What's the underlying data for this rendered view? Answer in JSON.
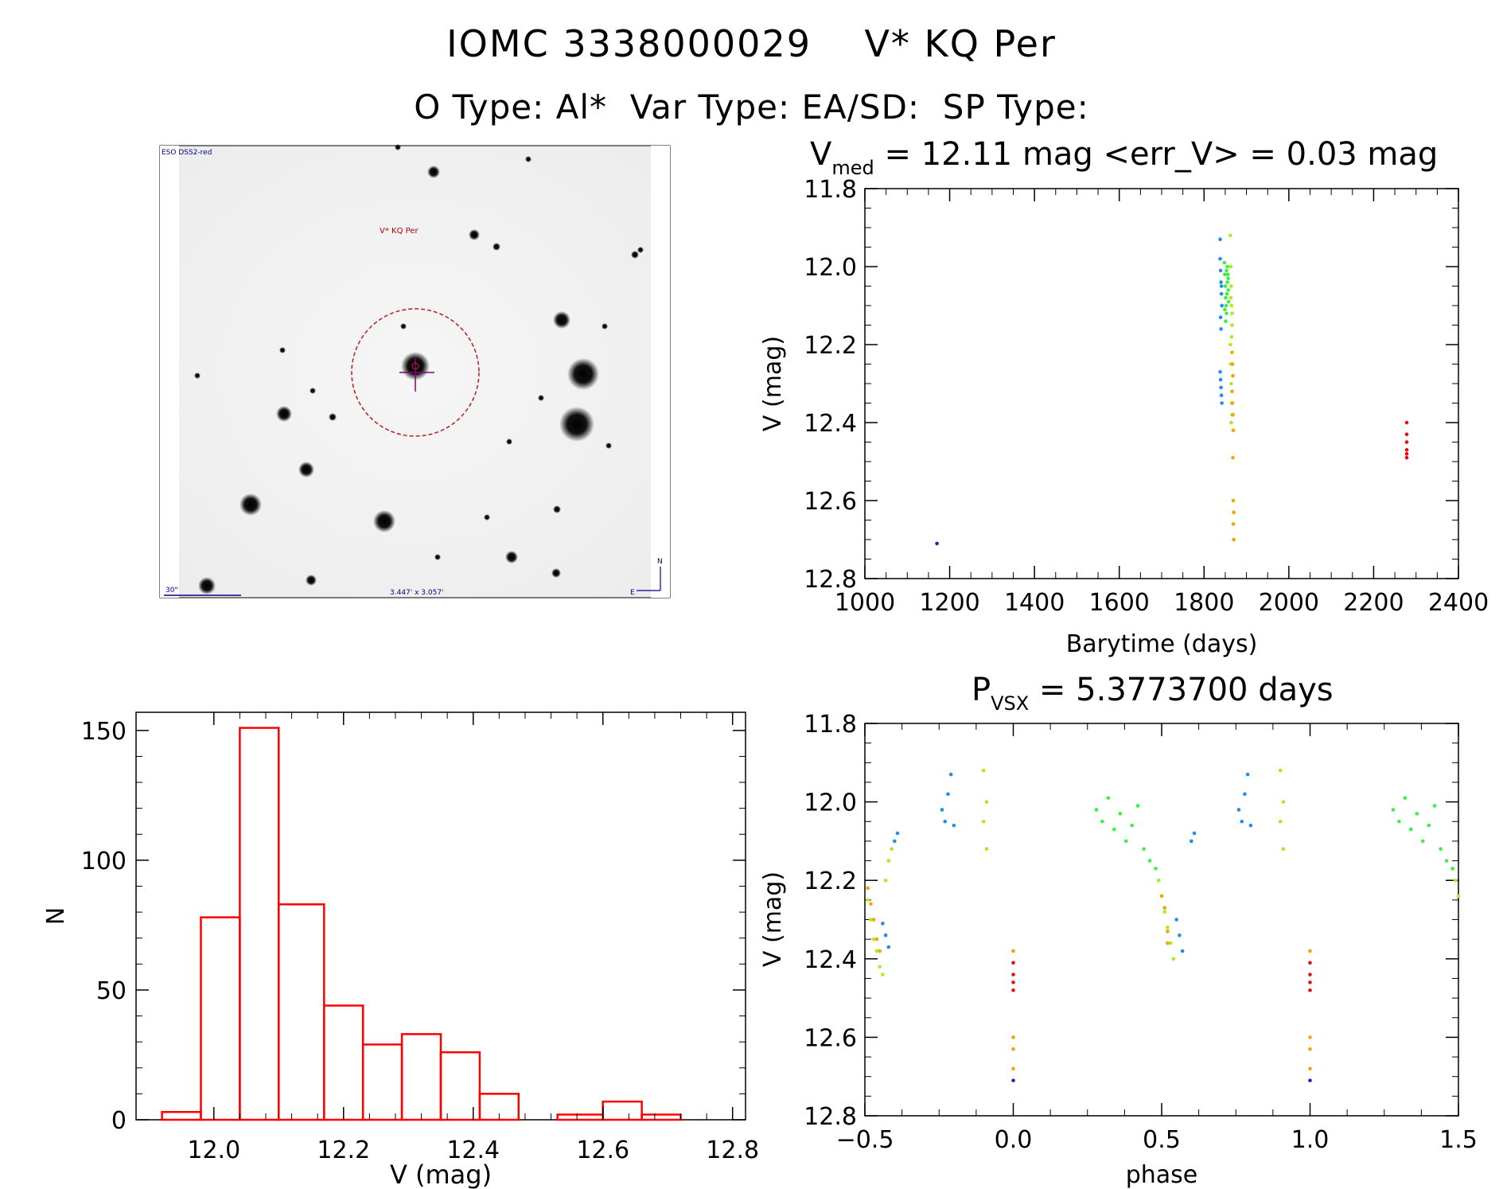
{
  "title": "IOMC 3338000029    V* KQ Per",
  "subtitle": "O Type: Al*  Var Type: EA/SD:  SP Type:",
  "finder": {
    "survey_label": "ESO DSS2-red",
    "target_label": "V* KQ Per",
    "scale_label": "30\"",
    "fov_label": "3.447' x 3.057'",
    "north_label": "N",
    "east_label": "E"
  },
  "colors": {
    "blue": "#1e8cf0",
    "green": "#3cf03c",
    "lime": "#a6f016",
    "orange": "#f5a300",
    "red": "#e01010",
    "darkblue": "#2020c0",
    "hist": "#ff0000"
  },
  "chart_data": [
    {
      "type": "scatter",
      "id": "lightcurve",
      "title_main": "V",
      "title_sub": "med",
      "title_rest": " = 12.11 mag <err_V> = 0.03 mag",
      "xlabel": "Barytime (days)",
      "ylabel": "V (mag)",
      "xlim": [
        1000,
        2400
      ],
      "ylim": [
        11.8,
        12.8
      ],
      "y_inverted": true,
      "xticks": [
        1000,
        1200,
        1400,
        1600,
        1800,
        2000,
        2200,
        2400
      ],
      "xtick_labels": [
        "1000",
        "1200",
        "1400",
        "1600",
        "1800",
        "2000",
        "2200",
        "2400"
      ],
      "yticks": [
        11.8,
        12.0,
        12.2,
        12.4,
        12.6,
        12.8
      ],
      "ytick_labels": [
        "11.8",
        "12.0",
        "12.2",
        "12.4",
        "12.6",
        "12.8"
      ],
      "series": [
        {
          "name": "early",
          "color": "darkblue",
          "x": [
            1170
          ],
          "y": [
            12.71
          ]
        },
        {
          "name": "blue",
          "color": "blue",
          "x": [
            1838,
            1838,
            1839,
            1840,
            1841,
            1842,
            1839,
            1840,
            1841,
            1838,
            1839,
            1840,
            1841,
            1842
          ],
          "y": [
            11.93,
            11.98,
            12.01,
            12.04,
            12.07,
            12.1,
            12.13,
            12.16,
            12.05,
            12.27,
            12.29,
            12.31,
            12.33,
            12.35
          ]
        },
        {
          "name": "green",
          "color": "green",
          "x": [
            1848,
            1849,
            1850,
            1851,
            1852,
            1853,
            1854,
            1855,
            1856,
            1857,
            1858,
            1849,
            1851,
            1853,
            1855,
            1857
          ],
          "y": [
            11.99,
            12.02,
            12.05,
            12.08,
            12.1,
            12.12,
            12.07,
            12.04,
            12.02,
            12.06,
            12.09,
            12.11,
            12.14,
            12.01,
            12.0,
            12.03
          ]
        },
        {
          "name": "lime",
          "color": "lime",
          "x": [
            1862,
            1863,
            1864,
            1865,
            1866,
            1862,
            1863,
            1864,
            1865,
            1866,
            1864,
            1865,
            1866,
            1863
          ],
          "y": [
            11.92,
            12.0,
            12.05,
            12.1,
            12.15,
            12.2,
            12.25,
            12.3,
            12.35,
            12.38,
            12.4,
            12.18,
            12.12,
            12.08
          ]
        },
        {
          "name": "orange",
          "color": "orange",
          "x": [
            1866,
            1867,
            1868,
            1866,
            1867,
            1868,
            1869,
            1868,
            1869,
            1870,
            1869,
            1870
          ],
          "y": [
            12.22,
            12.25,
            12.28,
            12.32,
            12.35,
            12.38,
            12.42,
            12.49,
            12.6,
            12.63,
            12.66,
            12.7
          ]
        },
        {
          "name": "red",
          "color": "red",
          "x": [
            2278,
            2278,
            2278,
            2278,
            2278,
            2278
          ],
          "y": [
            12.4,
            12.43,
            12.45,
            12.47,
            12.48,
            12.49
          ]
        }
      ]
    },
    {
      "type": "bar",
      "id": "histogram",
      "xlabel": "V (mag)",
      "ylabel": "N",
      "xlim": [
        11.88,
        12.82
      ],
      "ylim": [
        0,
        157
      ],
      "xticks": [
        12.0,
        12.2,
        12.4,
        12.6,
        12.8
      ],
      "xtick_labels": [
        "12.0",
        "12.2",
        "12.4",
        "12.6",
        "12.8"
      ],
      "yticks": [
        0,
        50,
        100,
        150
      ],
      "ytick_labels": [
        "0",
        "50",
        "100",
        "150"
      ],
      "bin_edges": [
        11.92,
        11.98,
        12.04,
        12.1,
        12.17,
        12.23,
        12.29,
        12.35,
        12.41,
        12.47,
        12.53,
        12.6,
        12.66,
        12.72
      ],
      "counts": [
        3,
        78,
        151,
        83,
        44,
        29,
        33,
        26,
        10,
        0,
        2,
        7,
        2
      ]
    },
    {
      "type": "scatter",
      "id": "phased",
      "title_main": "P",
      "title_sub": "VSX",
      "title_rest": " = 5.3773700 days",
      "xlabel": "phase",
      "ylabel": "V (mag)",
      "xlim": [
        -0.5,
        1.5
      ],
      "ylim": [
        11.8,
        12.8
      ],
      "y_inverted": true,
      "xticks": [
        -0.5,
        0.0,
        0.5,
        1.0,
        1.5
      ],
      "xtick_labels": [
        "−0.5",
        "0.0",
        "0.5",
        "1.0",
        "1.5"
      ],
      "yticks": [
        11.8,
        12.0,
        12.2,
        12.4,
        12.6,
        12.8
      ],
      "ytick_labels": [
        "11.8",
        "12.0",
        "12.2",
        "12.4",
        "12.6",
        "12.8"
      ],
      "series": [
        {
          "name": "lime",
          "color": "lime",
          "x": [
            -0.49,
            -0.48,
            -0.47,
            -0.46,
            -0.45,
            -0.44,
            -0.43,
            -0.42,
            -0.41,
            -0.1,
            -0.09,
            -0.1,
            -0.09,
            0.49,
            0.5,
            0.51,
            0.52,
            0.53,
            0.54,
            0.9,
            0.91,
            0.9,
            0.91,
            1.49,
            1.5
          ],
          "y": [
            12.25,
            12.3,
            12.35,
            12.38,
            12.42,
            12.44,
            12.2,
            12.15,
            12.12,
            11.92,
            12.0,
            12.05,
            12.12,
            12.2,
            12.24,
            12.28,
            12.32,
            12.36,
            12.4,
            11.92,
            12.0,
            12.05,
            12.12,
            12.2,
            12.24
          ]
        },
        {
          "name": "orange",
          "color": "orange",
          "x": [
            -0.49,
            -0.48,
            -0.47,
            -0.46,
            -0.45,
            0.0,
            0.0,
            0.0,
            0.0,
            0.5,
            0.51,
            0.52,
            0.52,
            1.0,
            1.0,
            1.0,
            1.0
          ],
          "y": [
            12.22,
            12.26,
            12.3,
            12.35,
            12.38,
            12.38,
            12.6,
            12.63,
            12.68,
            12.24,
            12.27,
            12.33,
            12.36,
            12.38,
            12.6,
            12.63,
            12.68
          ]
        },
        {
          "name": "blue",
          "color": "blue",
          "x": [
            -0.44,
            -0.43,
            -0.42,
            -0.4,
            -0.39,
            -0.24,
            -0.23,
            -0.22,
            -0.21,
            -0.2,
            0.55,
            0.56,
            0.57,
            0.6,
            0.61,
            0.76,
            0.77,
            0.78,
            0.79,
            0.8
          ],
          "y": [
            12.31,
            12.34,
            12.37,
            12.1,
            12.08,
            12.02,
            12.05,
            11.98,
            11.93,
            12.06,
            12.3,
            12.34,
            12.38,
            12.1,
            12.08,
            12.02,
            12.05,
            11.98,
            11.93,
            12.06
          ]
        },
        {
          "name": "green",
          "color": "green",
          "x": [
            0.28,
            0.3,
            0.32,
            0.34,
            0.36,
            0.38,
            0.4,
            0.42,
            0.44,
            0.46,
            0.48,
            1.28,
            1.3,
            1.32,
            1.34,
            1.36,
            1.38,
            1.4,
            1.42,
            1.44,
            1.46,
            1.48
          ],
          "y": [
            12.02,
            12.05,
            11.99,
            12.07,
            12.03,
            12.1,
            12.06,
            12.01,
            12.12,
            12.15,
            12.17,
            12.02,
            12.05,
            11.99,
            12.07,
            12.03,
            12.1,
            12.06,
            12.01,
            12.12,
            12.15,
            12.17
          ]
        },
        {
          "name": "red",
          "color": "red",
          "x": [
            0.0,
            0.0,
            0.0,
            0.0,
            1.0,
            1.0,
            1.0,
            1.0
          ],
          "y": [
            12.41,
            12.44,
            12.46,
            12.48,
            12.41,
            12.44,
            12.46,
            12.48
          ]
        },
        {
          "name": "darkblue",
          "color": "darkblue",
          "x": [
            0.0,
            1.0
          ],
          "y": [
            12.71,
            12.71
          ]
        }
      ]
    }
  ]
}
